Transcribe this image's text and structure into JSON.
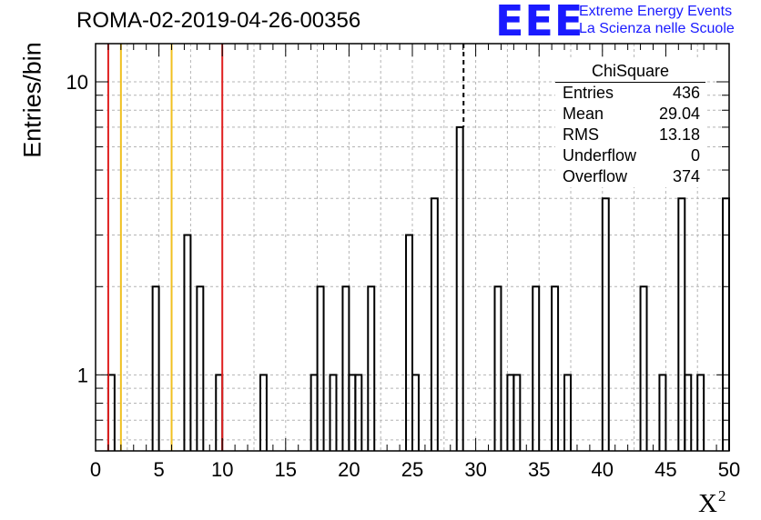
{
  "title": "ROMA-02-2019-04-26-00356",
  "logo": {
    "mark": "EEE",
    "line1": "Extreme Energy Events",
    "line2": "La Scienza nelle Scuole",
    "color": "#1a1aff"
  },
  "stats": {
    "name": "ChiSquare",
    "rows": [
      {
        "label": "Entries",
        "value": "436"
      },
      {
        "label": "Mean",
        "value": "29.04"
      },
      {
        "label": "RMS",
        "value": "13.18"
      },
      {
        "label": "Underflow",
        "value": "0"
      },
      {
        "label": "Overflow",
        "value": "374"
      }
    ]
  },
  "chart_data": {
    "type": "bar",
    "title": "ROMA-02-2019-04-26-00356",
    "xlabel": "X",
    "xlabel_sup": "2",
    "ylabel": "Entries/bin",
    "xlim": [
      0,
      50
    ],
    "ylim": [
      0.55,
      13.5
    ],
    "yscale": "log",
    "bin_width": 0.5,
    "grid": true,
    "x_ticks": [
      "0",
      "5",
      "10",
      "15",
      "20",
      "25",
      "30",
      "35",
      "40",
      "45",
      "50"
    ],
    "y_ticks": [
      "1",
      "10"
    ],
    "bins": [
      {
        "x": 1.0,
        "count": 1
      },
      {
        "x": 4.5,
        "count": 2
      },
      {
        "x": 7.0,
        "count": 3
      },
      {
        "x": 8.0,
        "count": 2
      },
      {
        "x": 9.5,
        "count": 1
      },
      {
        "x": 13.0,
        "count": 1
      },
      {
        "x": 17.0,
        "count": 1
      },
      {
        "x": 17.5,
        "count": 2
      },
      {
        "x": 18.5,
        "count": 1
      },
      {
        "x": 19.5,
        "count": 2
      },
      {
        "x": 20.0,
        "count": 1
      },
      {
        "x": 20.5,
        "count": 1
      },
      {
        "x": 21.5,
        "count": 2
      },
      {
        "x": 24.5,
        "count": 3
      },
      {
        "x": 25.0,
        "count": 1
      },
      {
        "x": 26.5,
        "count": 4
      },
      {
        "x": 28.5,
        "count": 7
      },
      {
        "x": 31.5,
        "count": 2
      },
      {
        "x": 32.5,
        "count": 1
      },
      {
        "x": 33.0,
        "count": 1
      },
      {
        "x": 34.5,
        "count": 2
      },
      {
        "x": 36.0,
        "count": 2
      },
      {
        "x": 37.0,
        "count": 1
      },
      {
        "x": 40.0,
        "count": 4
      },
      {
        "x": 43.0,
        "count": 2
      },
      {
        "x": 44.5,
        "count": 1
      },
      {
        "x": 46.0,
        "count": 4
      },
      {
        "x": 46.5,
        "count": 1
      },
      {
        "x": 47.5,
        "count": 1
      },
      {
        "x": 49.5,
        "count": 4
      }
    ],
    "vertical_lines": [
      {
        "x": 1,
        "color": "#e02020",
        "style": "solid"
      },
      {
        "x": 2,
        "color": "#f0c020",
        "style": "solid"
      },
      {
        "x": 6,
        "color": "#f0c020",
        "style": "solid"
      },
      {
        "x": 10,
        "color": "#e02020",
        "style": "solid"
      },
      {
        "x": 29.04,
        "color": "#000000",
        "style": "dashed"
      }
    ]
  }
}
